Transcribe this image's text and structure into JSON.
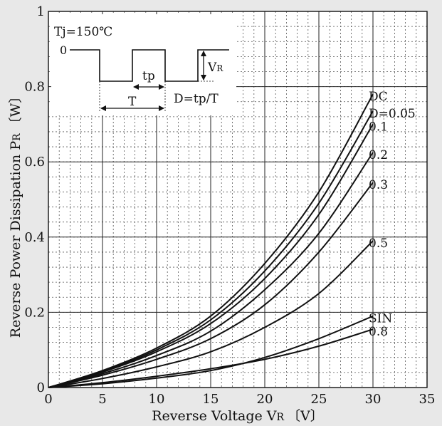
{
  "chart_data": {
    "type": "line",
    "xlabel": "Reverse Voltage V",
    "xlabel_sub": "R",
    "xlabel_unit": "〔V〕",
    "ylabel": "Reverse Power Dissipation P",
    "ylabel_sub": "R",
    "ylabel_unit": "〔W〕",
    "xlim": [
      0,
      35
    ],
    "ylim": [
      0,
      1
    ],
    "x_ticks": [
      0,
      5,
      10,
      15,
      20,
      25,
      30,
      35
    ],
    "x_tick_labels": [
      "0",
      "5",
      "10",
      "15",
      "20",
      "25",
      "30",
      "35"
    ],
    "y_ticks": [
      0,
      0.2,
      0.4,
      0.6,
      0.8,
      1
    ],
    "y_tick_labels": [
      "0",
      "0.2",
      "0.4",
      "0.6",
      "0.8",
      "1"
    ],
    "grid": "on",
    "x": [
      0,
      5,
      10,
      15,
      20,
      25,
      30
    ],
    "series": [
      {
        "name": "DC",
        "values": [
          0,
          0.045,
          0.105,
          0.19,
          0.33,
          0.52,
          0.78
        ]
      },
      {
        "name": "D=0.05",
        "values": [
          0,
          0.043,
          0.1,
          0.18,
          0.31,
          0.49,
          0.735
        ]
      },
      {
        "name": "0.1",
        "values": [
          0,
          0.041,
          0.095,
          0.17,
          0.29,
          0.46,
          0.7
        ]
      },
      {
        "name": "0.2",
        "values": [
          0,
          0.037,
          0.085,
          0.15,
          0.26,
          0.41,
          0.625
        ]
      },
      {
        "name": "0.3",
        "values": [
          0,
          0.033,
          0.075,
          0.13,
          0.22,
          0.36,
          0.545
        ]
      },
      {
        "name": "0.5",
        "values": [
          0,
          0.024,
          0.055,
          0.095,
          0.16,
          0.25,
          0.39
        ]
      },
      {
        "name": "SIN",
        "values": [
          0,
          0.01,
          0.025,
          0.045,
          0.08,
          0.13,
          0.19
        ]
      },
      {
        "name": "0.8",
        "values": [
          0,
          0.013,
          0.03,
          0.05,
          0.075,
          0.11,
          0.155
        ]
      }
    ],
    "inset": {
      "condition": "Tj=150℃",
      "zero_label": "0",
      "vr_label": "V",
      "vr_sub": "R",
      "tp_label": "tp",
      "T_label": "T",
      "duty_label": "D=tp/T"
    }
  }
}
